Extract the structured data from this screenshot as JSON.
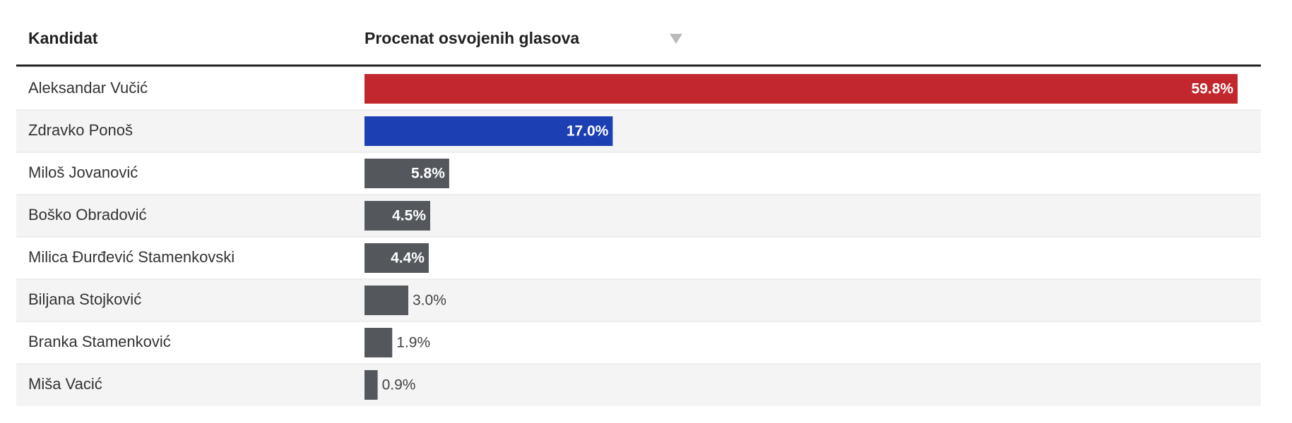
{
  "chart_data": {
    "type": "bar",
    "column_headers": [
      "Kandidat",
      "Procenat osvojenih glasova"
    ],
    "categories": [
      "Aleksandar Vučić",
      "Zdravko Ponoš",
      "Miloš Jovanović",
      "Boško Obradović",
      "Milica Đurđević Stamenkovski",
      "Biljana Stojković",
      "Branka Stamenković",
      "Miša Vacić"
    ],
    "values": [
      59.8,
      17.0,
      5.8,
      4.5,
      4.4,
      3.0,
      1.9,
      0.9
    ],
    "value_labels": [
      "59.8%",
      "17.0%",
      "5.8%",
      "4.5%",
      "4.4%",
      "3.0%",
      "1.9%",
      "0.9%"
    ],
    "colors": [
      "#c1272d",
      "#1c3fb3",
      "#54585c",
      "#54585c",
      "#54585c",
      "#54585c",
      "#54585c",
      "#54585c"
    ]
  }
}
